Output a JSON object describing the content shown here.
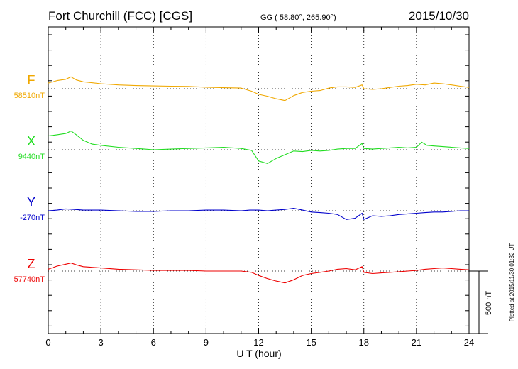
{
  "header": {
    "station": "Fort Churchill (FCC)  [CGS]",
    "coords": "GG ( 58.80°, 265.90°)",
    "date": "2015/10/30"
  },
  "side_note": "Plotted at 2015/11/30 01:32 UT",
  "scale_label": "500 nT",
  "chart_data": {
    "type": "line",
    "xlabel": "U T (hour)",
    "x_ticks": [
      0,
      3,
      6,
      9,
      12,
      15,
      18,
      21,
      24
    ],
    "xlim": [
      0,
      24
    ],
    "scale_bar_nT": 500,
    "grid": true,
    "series": [
      {
        "name": "F",
        "baseline_label": "58510nT",
        "baseline": 58510,
        "color": "#f0a800",
        "x": [
          0,
          0.5,
          1,
          1.3,
          1.6,
          2,
          3,
          4,
          5,
          6,
          7,
          8,
          9,
          10,
          11,
          11.6,
          12,
          12.5,
          13,
          13.5,
          14,
          14.5,
          15,
          15.5,
          16,
          16.5,
          17,
          17.5,
          17.9,
          18,
          18.5,
          19,
          19.5,
          20,
          20.5,
          21,
          21.5,
          22,
          22.5,
          23,
          23.5,
          24
        ],
        "y": [
          45,
          65,
          75,
          95,
          70,
          55,
          40,
          30,
          25,
          22,
          20,
          18,
          12,
          8,
          5,
          -20,
          -45,
          -60,
          -80,
          -95,
          -55,
          -30,
          -20,
          -15,
          5,
          15,
          15,
          10,
          30,
          0,
          -5,
          0,
          10,
          20,
          25,
          35,
          30,
          45,
          40,
          30,
          20,
          10
        ]
      },
      {
        "name": "X",
        "baseline_label": "9440nT",
        "baseline": 9440,
        "color": "#22dd22",
        "x": [
          0,
          0.5,
          1,
          1.3,
          1.6,
          2,
          2.5,
          3,
          4,
          5,
          5.5,
          6,
          7,
          8,
          9,
          10,
          11,
          11.6,
          12,
          12.5,
          13,
          13.5,
          14,
          14.5,
          15,
          15.5,
          16,
          16.5,
          17,
          17.5,
          17.9,
          18,
          18.5,
          19,
          19.5,
          20,
          20.5,
          21,
          21.3,
          21.6,
          22,
          22.5,
          23,
          23.5,
          24
        ],
        "y": [
          110,
          120,
          130,
          150,
          120,
          75,
          45,
          35,
          20,
          10,
          5,
          0,
          5,
          10,
          15,
          20,
          10,
          -5,
          -90,
          -110,
          -70,
          -40,
          -10,
          -15,
          -5,
          -10,
          -5,
          5,
          10,
          10,
          50,
          10,
          5,
          10,
          15,
          20,
          15,
          20,
          60,
          35,
          30,
          25,
          20,
          15,
          10
        ]
      },
      {
        "name": "Y",
        "baseline_label": "-270nT",
        "baseline": -270,
        "color": "#0000cc",
        "x": [
          0,
          0.5,
          1,
          1.5,
          2,
          3,
          4,
          5,
          6,
          7,
          8,
          9,
          10,
          11,
          11.5,
          12,
          12.5,
          13,
          13.5,
          14,
          14.5,
          15,
          15.5,
          16,
          16.5,
          17,
          17.5,
          17.9,
          18,
          18.5,
          19,
          19.5,
          20,
          20.5,
          21,
          21.5,
          22,
          22.5,
          23,
          23.5,
          24
        ],
        "y": [
          0,
          5,
          15,
          10,
          5,
          5,
          0,
          -5,
          -5,
          0,
          0,
          5,
          5,
          0,
          5,
          5,
          0,
          5,
          10,
          20,
          5,
          -10,
          -15,
          -20,
          -30,
          -70,
          -60,
          -20,
          -70,
          -40,
          -45,
          -40,
          -30,
          -25,
          -20,
          -15,
          -10,
          -10,
          -5,
          0,
          0
        ]
      },
      {
        "name": "Z",
        "baseline_label": "57740nT",
        "baseline": 57740,
        "color": "#ee0000",
        "x": [
          0,
          0.5,
          1,
          1.3,
          1.6,
          2,
          3,
          4,
          5,
          6,
          7,
          8,
          9,
          10,
          11,
          11.6,
          12,
          12.5,
          13,
          13.5,
          14,
          14.5,
          15,
          15.5,
          16,
          16.5,
          17,
          17.5,
          17.9,
          18,
          18.5,
          19,
          19.5,
          20,
          20.5,
          21,
          21.5,
          22,
          22.5,
          23,
          23.5,
          24
        ],
        "y": [
          15,
          40,
          55,
          65,
          50,
          35,
          25,
          15,
          10,
          5,
          5,
          5,
          0,
          0,
          0,
          -10,
          -35,
          -60,
          -80,
          -95,
          -70,
          -35,
          -20,
          -10,
          0,
          15,
          20,
          10,
          35,
          -10,
          -20,
          -15,
          -10,
          -5,
          0,
          5,
          15,
          20,
          25,
          20,
          15,
          10
        ]
      }
    ]
  }
}
